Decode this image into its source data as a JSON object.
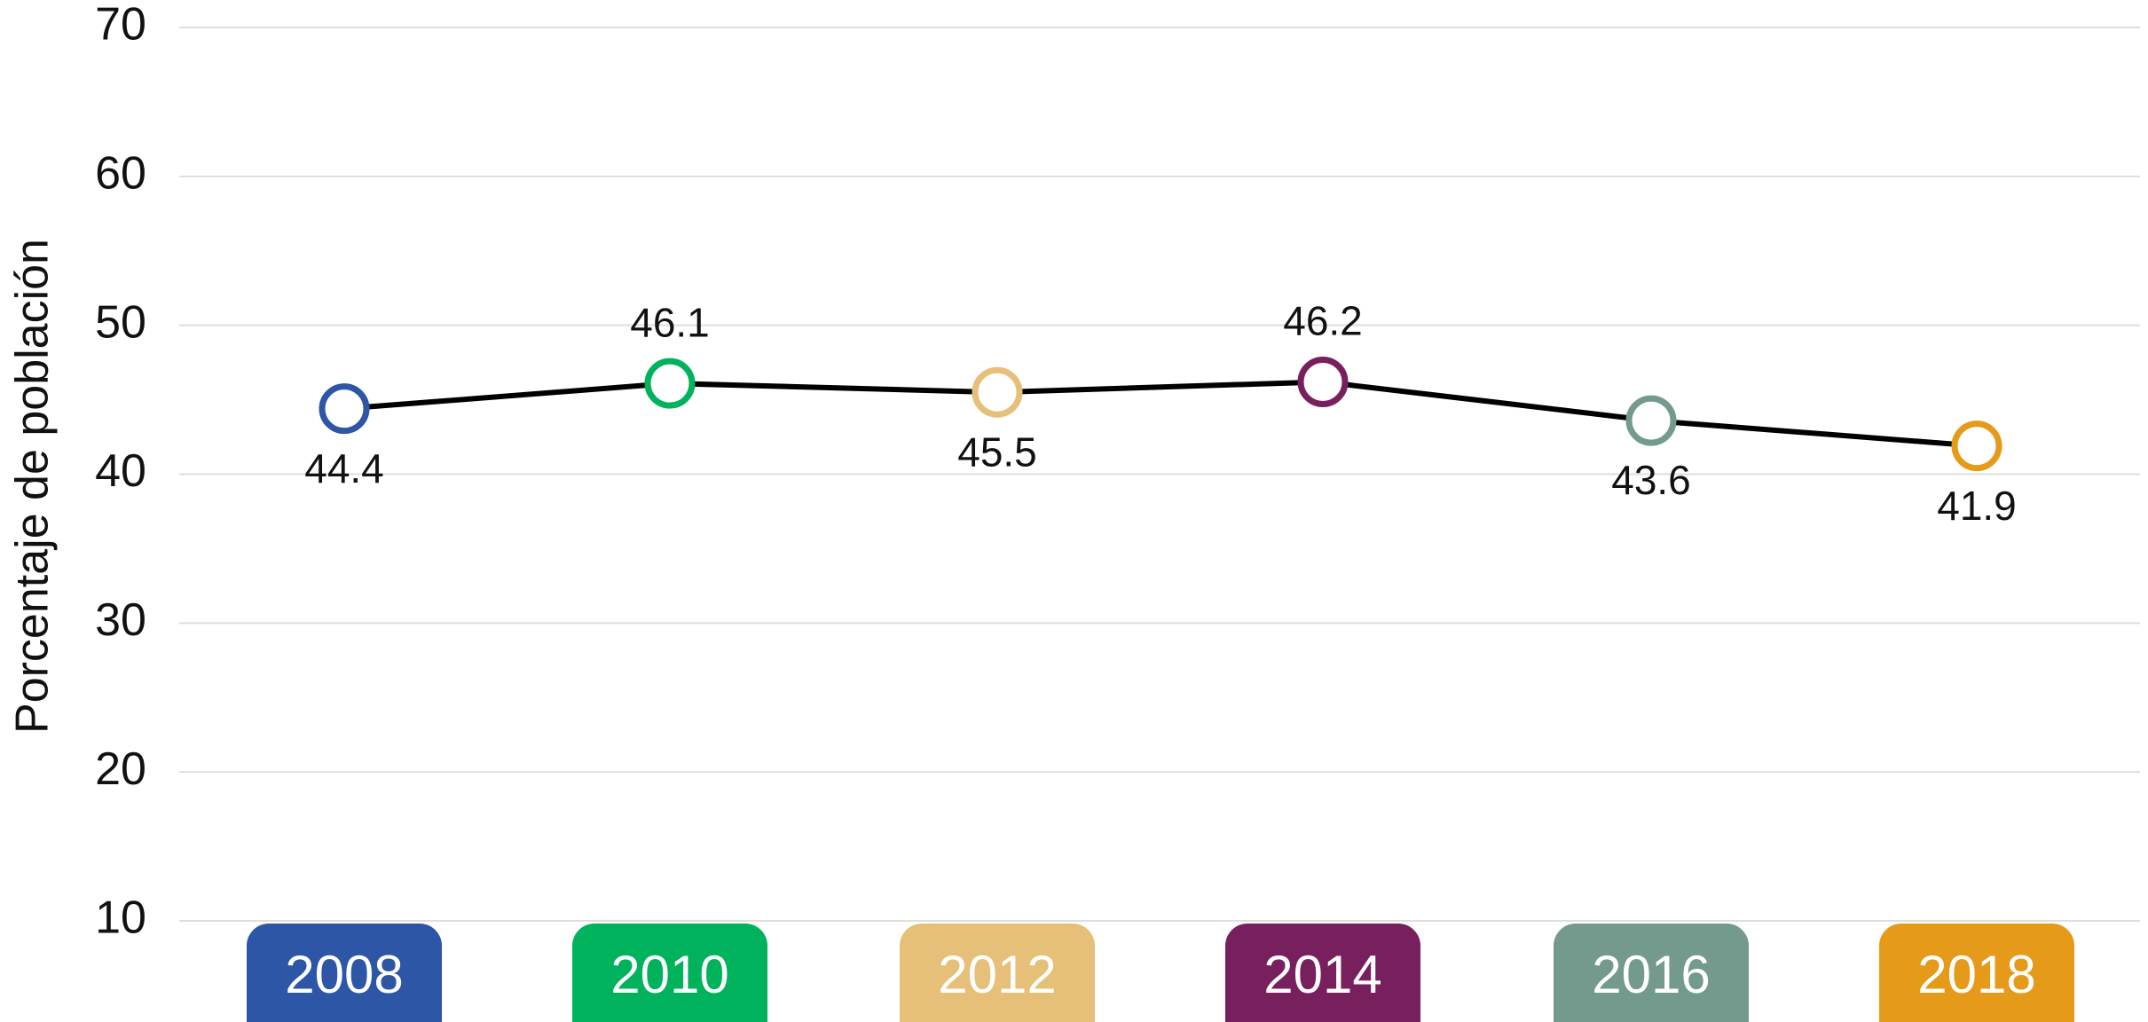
{
  "chart_data": {
    "type": "line",
    "y_label": "Porcentaje de población",
    "categories": [
      "2008",
      "2010",
      "2012",
      "2014",
      "2016",
      "2018"
    ],
    "series": [
      {
        "values": [
          44.4,
          46.1,
          45.5,
          46.2,
          43.6,
          41.9
        ],
        "color": "#000000",
        "colors": [
          "#2e56a6",
          "#00b25c",
          "#e6c078",
          "#781f5e",
          "#739a8c",
          "#e59a1a"
        ]
      }
    ],
    "ylim": [
      10,
      70
    ],
    "yticks": [
      10,
      20,
      30,
      40,
      50,
      60,
      70
    ],
    "grid": true
  }
}
